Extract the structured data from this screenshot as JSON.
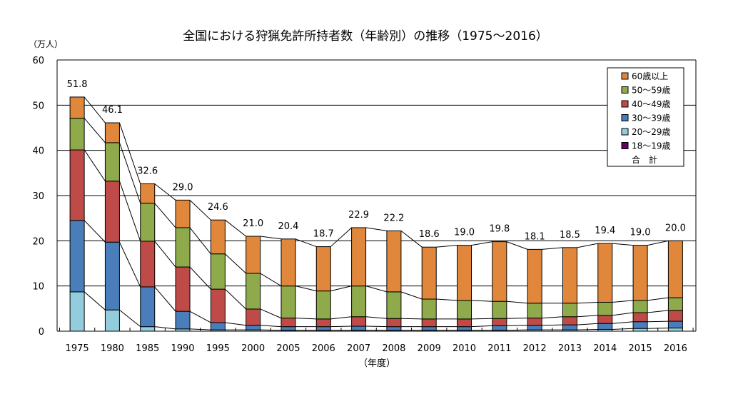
{
  "chart_data": {
    "type": "bar",
    "stacked": true,
    "title": "全国における狩猟免許所持者数（年齢別）の推移（1975〜2016）",
    "ylabel": "（万人）",
    "xlabel": "（年度）",
    "ylim": [
      0,
      60
    ],
    "yticks": [
      0,
      10,
      20,
      30,
      40,
      50,
      60
    ],
    "grid": true,
    "legend_position": "top-right",
    "categories": [
      "1975",
      "1980",
      "1985",
      "1990",
      "1995",
      "2000",
      "2005",
      "2006",
      "2007",
      "2008",
      "2009",
      "2010",
      "2011",
      "2012",
      "2013",
      "2014",
      "2015",
      "2016"
    ],
    "series": [
      {
        "name": "18〜19歳",
        "color": "#660066",
        "values": [
          0,
          0,
          0,
          0,
          0,
          0,
          0,
          0,
          0,
          0,
          0,
          0,
          0,
          0,
          0,
          0,
          0,
          0
        ]
      },
      {
        "name": "20〜29歳",
        "color": "#93CDDD",
        "values": [
          8.7,
          4.7,
          1.0,
          0.5,
          0.3,
          0.3,
          0.2,
          0.2,
          0.2,
          0.2,
          0.2,
          0.2,
          0.2,
          0.3,
          0.3,
          0.4,
          0.6,
          0.7
        ]
      },
      {
        "name": "30〜39歳",
        "color": "#4A7EBB",
        "values": [
          15.8,
          15.0,
          8.8,
          3.9,
          1.6,
          1.0,
          0.8,
          0.8,
          0.9,
          0.8,
          0.8,
          0.8,
          1.0,
          1.0,
          1.1,
          1.3,
          1.5,
          1.5
        ]
      },
      {
        "name": "40〜49歳",
        "color": "#BE4B48",
        "values": [
          15.6,
          13.5,
          10.1,
          9.8,
          7.4,
          3.6,
          1.9,
          1.7,
          2.1,
          1.8,
          1.7,
          1.7,
          1.6,
          1.6,
          1.8,
          1.8,
          2.0,
          2.4
        ]
      },
      {
        "name": "50〜59歳",
        "color": "#8EAA4B",
        "values": [
          7.0,
          8.5,
          8.4,
          8.7,
          7.8,
          7.9,
          7.1,
          6.2,
          6.8,
          5.9,
          4.4,
          4.1,
          3.8,
          3.3,
          3.0,
          2.9,
          2.7,
          2.8
        ]
      },
      {
        "name": "60歳以上",
        "color": "#E0873C",
        "values": [
          4.7,
          4.4,
          4.3,
          6.1,
          7.5,
          8.2,
          10.4,
          9.8,
          12.9,
          13.5,
          11.5,
          12.2,
          13.2,
          11.9,
          12.3,
          13.0,
          12.2,
          12.6
        ]
      }
    ],
    "totals_name": "合　計",
    "totals": [
      51.8,
      46.1,
      32.6,
      29.0,
      24.6,
      21.0,
      20.4,
      18.7,
      22.9,
      22.2,
      18.6,
      19.0,
      19.8,
      18.1,
      18.5,
      19.4,
      19.0,
      20.0
    ],
    "total_labels": [
      "51.8",
      "46.1",
      "32.6",
      "29.0",
      "24.6",
      "21.0",
      "20.4",
      "18.7",
      "22.9",
      "22.2",
      "18.6",
      "19.0",
      "19.8",
      "18.1",
      "18.5",
      "19.4",
      "19.0",
      "20.0"
    ]
  }
}
